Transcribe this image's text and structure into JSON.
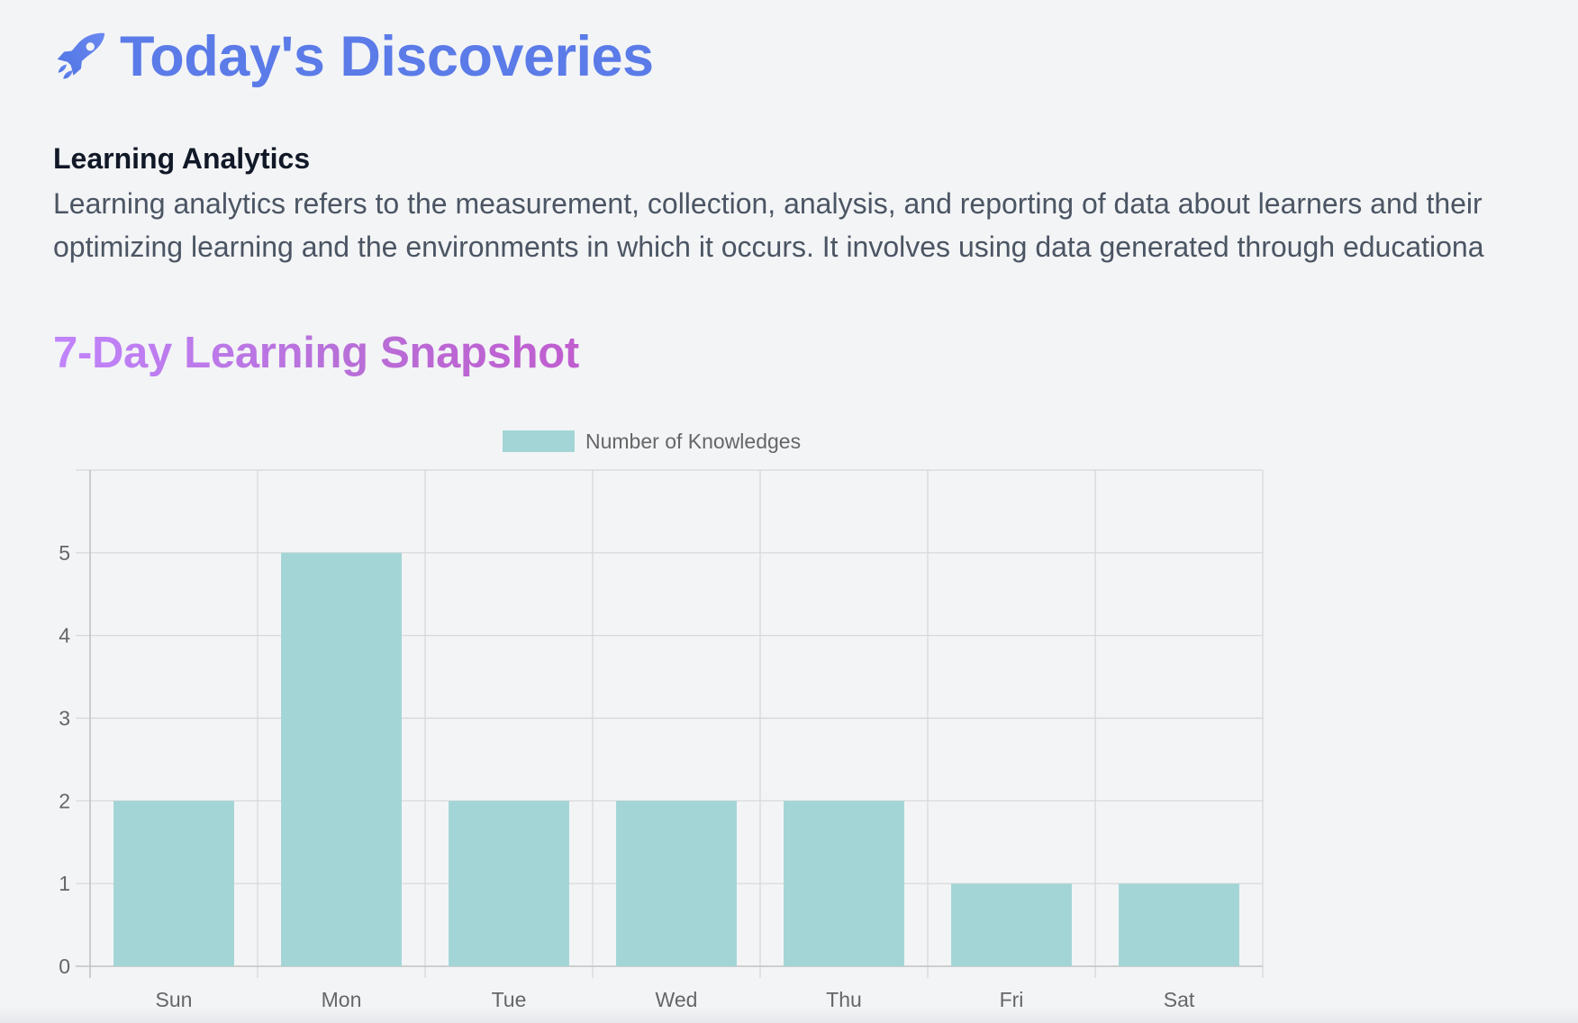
{
  "header": {
    "title": "Today's Discoveries",
    "icon": "rocket-icon"
  },
  "topic": {
    "title": "Learning Analytics",
    "description_lines": [
      "Learning analytics refers to the measurement, collection, analysis, and reporting of data about learners and their",
      "optimizing learning and the environments in which it occurs. It involves using data generated through educationa"
    ]
  },
  "snapshot": {
    "title": "7-Day Learning Snapshot"
  },
  "colors": {
    "title": "#5b7be8",
    "bar": "#a3d5d6",
    "grid": "#d6d6d6",
    "text": "#666666"
  },
  "chart_data": {
    "type": "bar",
    "categories": [
      "Sun",
      "Mon",
      "Tue",
      "Wed",
      "Thu",
      "Fri",
      "Sat"
    ],
    "series": [
      {
        "name": "Number of Knowledges",
        "values": [
          2,
          5,
          2,
          2,
          2,
          1,
          1
        ]
      }
    ],
    "title": "",
    "xlabel": "",
    "ylabel": "",
    "ylim": [
      0,
      6
    ],
    "yticks": [
      0,
      1,
      2,
      3,
      4,
      5
    ],
    "grid": true,
    "legend": "top-center"
  }
}
